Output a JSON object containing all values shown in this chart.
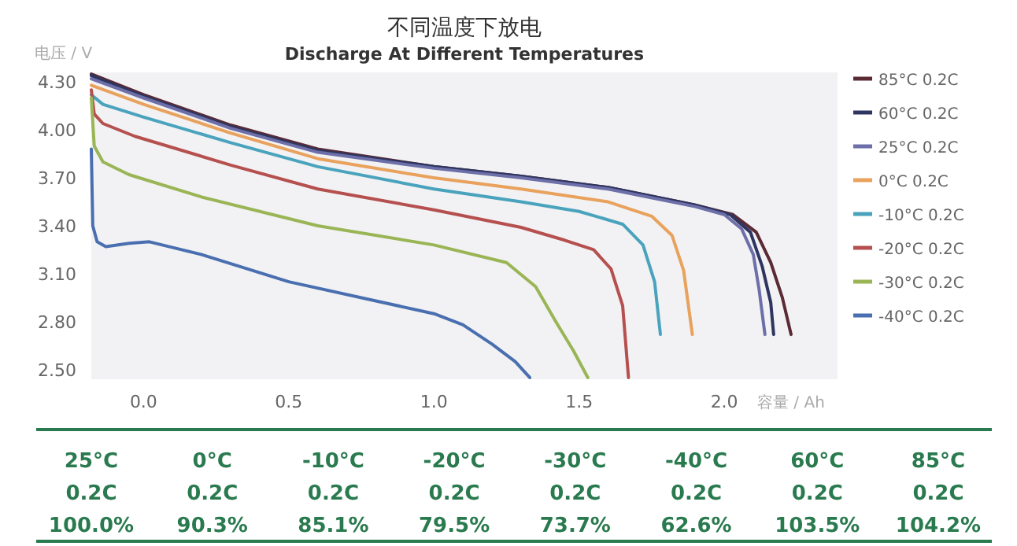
{
  "chart_data": {
    "type": "line",
    "title": "不同温度下放电",
    "subtitle": "Discharge At Different Temperatures",
    "xlabel": "容量 / Ah",
    "ylabel": "电压 / V",
    "xlim": [
      -0.18,
      2.39
    ],
    "ylim": [
      2.44,
      4.36
    ],
    "xticks": [
      {
        "value": 0,
        "label": "0.0"
      },
      {
        "value": 0.5,
        "label": "0.5"
      },
      {
        "value": 1,
        "label": "1.0"
      },
      {
        "value": 1.5,
        "label": "1.5"
      },
      {
        "value": 2,
        "label": "2.0"
      }
    ],
    "yticks": [
      {
        "value": 2.5,
        "label": "2.50"
      },
      {
        "value": 2.8,
        "label": "2.80"
      },
      {
        "value": 3.1,
        "label": "3.10"
      },
      {
        "value": 3.4,
        "label": "3.40"
      },
      {
        "value": 3.7,
        "label": "3.70"
      },
      {
        "value": 4,
        "label": "4.00"
      },
      {
        "value": 4.3,
        "label": "4.30"
      }
    ],
    "legend": "right",
    "series": [
      {
        "name": "85°C 0.2C",
        "color": "#5a2a35",
        "x": [
          -0.18,
          0.0,
          0.3,
          0.6,
          1.0,
          1.3,
          1.6,
          1.9,
          2.03,
          2.11,
          2.16,
          2.2,
          2.23
        ],
        "values": [
          4.35,
          4.22,
          4.03,
          3.88,
          3.77,
          3.71,
          3.64,
          3.53,
          3.47,
          3.36,
          3.17,
          2.95,
          2.72
        ]
      },
      {
        "name": "60°C 0.2C",
        "color": "#2e3560",
        "x": [
          -0.18,
          0.0,
          0.3,
          0.6,
          1.0,
          1.3,
          1.6,
          1.9,
          2.02,
          2.09,
          2.13,
          2.16,
          2.17
        ],
        "values": [
          4.34,
          4.21,
          4.02,
          3.87,
          3.77,
          3.71,
          3.64,
          3.53,
          3.47,
          3.36,
          3.15,
          2.92,
          2.72
        ]
      },
      {
        "name": "25°C 0.2C",
        "color": "#6d6fa8",
        "x": [
          -0.18,
          0.0,
          0.3,
          0.6,
          1.0,
          1.3,
          1.6,
          1.9,
          2.0,
          2.06,
          2.1,
          2.12,
          2.14
        ],
        "values": [
          4.32,
          4.2,
          4.01,
          3.86,
          3.76,
          3.7,
          3.63,
          3.52,
          3.47,
          3.38,
          3.22,
          3.0,
          2.72
        ]
      },
      {
        "name": "0°C 0.2C",
        "color": "#e9a25d",
        "x": [
          -0.18,
          0.0,
          0.3,
          0.6,
          1.0,
          1.3,
          1.6,
          1.75,
          1.82,
          1.86,
          1.89
        ],
        "values": [
          4.28,
          4.16,
          3.98,
          3.82,
          3.7,
          3.63,
          3.55,
          3.46,
          3.34,
          3.12,
          2.72
        ]
      },
      {
        "name": "-10°C 0.2C",
        "color": "#4aa3bd",
        "x": [
          -0.18,
          -0.14,
          0.0,
          0.3,
          0.6,
          1.0,
          1.3,
          1.5,
          1.65,
          1.72,
          1.76,
          1.78
        ],
        "values": [
          4.22,
          4.16,
          4.08,
          3.92,
          3.77,
          3.63,
          3.55,
          3.49,
          3.41,
          3.28,
          3.05,
          2.72
        ]
      },
      {
        "name": "-20°C 0.2C",
        "color": "#b5504f",
        "x": [
          -0.18,
          -0.17,
          -0.14,
          -0.03,
          0.3,
          0.6,
          1.0,
          1.3,
          1.45,
          1.55,
          1.61,
          1.65,
          1.67
        ],
        "values": [
          4.25,
          4.1,
          4.04,
          3.96,
          3.78,
          3.63,
          3.5,
          3.39,
          3.31,
          3.25,
          3.13,
          2.9,
          2.45
        ]
      },
      {
        "name": "-30°C 0.2C",
        "color": "#9ab555",
        "x": [
          -0.18,
          -0.17,
          -0.14,
          -0.05,
          0.2,
          0.6,
          1.0,
          1.25,
          1.35,
          1.42,
          1.48,
          1.53
        ],
        "values": [
          4.2,
          3.9,
          3.8,
          3.72,
          3.58,
          3.4,
          3.28,
          3.17,
          3.02,
          2.8,
          2.62,
          2.45
        ]
      },
      {
        "name": "-40°C 0.2C",
        "color": "#4a6fb0",
        "x": [
          -0.18,
          -0.175,
          -0.16,
          -0.13,
          -0.05,
          0.02,
          0.2,
          0.5,
          0.8,
          1.0,
          1.1,
          1.2,
          1.28,
          1.33
        ],
        "values": [
          3.88,
          3.4,
          3.3,
          3.27,
          3.29,
          3.3,
          3.22,
          3.05,
          2.93,
          2.85,
          2.78,
          2.66,
          2.55,
          2.45
        ]
      }
    ],
    "annotations": [
      "25°C",
      "0°C",
      "-10°C",
      "-20°C",
      "-30°C",
      "-40°C",
      "60°C",
      "85°C",
      "0.2C",
      "0.2C",
      "0.2C",
      "0.2C",
      "0.2C",
      "0.2C",
      "0.2C",
      "0.2C",
      "100.0%",
      "90.3%",
      "85.1%",
      "79.5%",
      "73.7%",
      "62.6%",
      "103.5%",
      "104.2%"
    ]
  }
}
